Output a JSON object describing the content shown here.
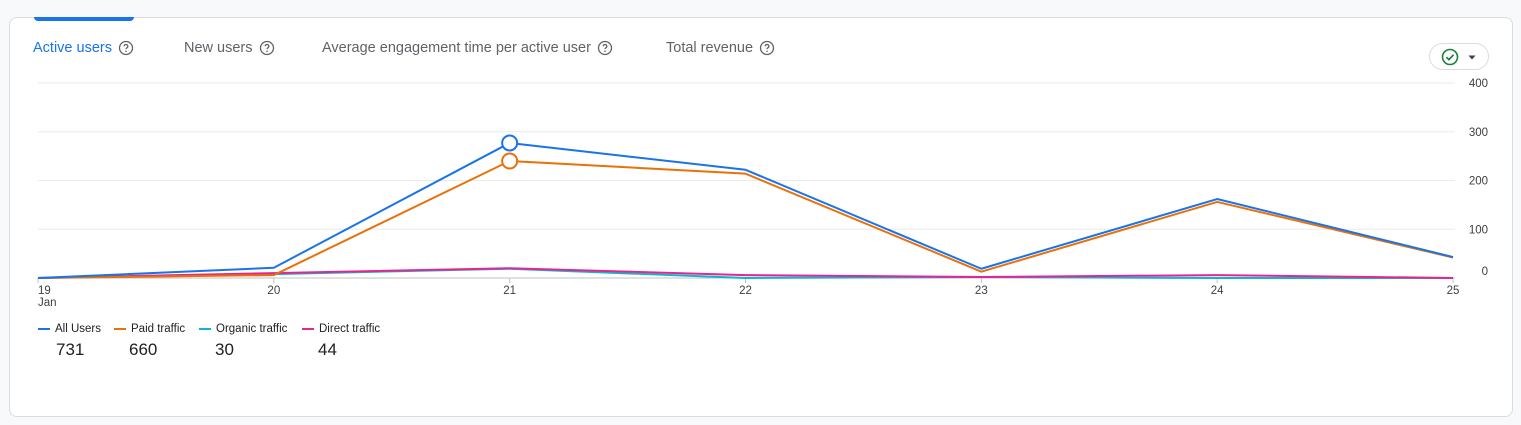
{
  "tabs": [
    {
      "label": "Active users",
      "active": true
    },
    {
      "label": "New users",
      "active": false
    },
    {
      "label": "Average engagement time per active user",
      "active": false
    },
    {
      "label": "Total revenue",
      "active": false
    }
  ],
  "icons": {
    "help": "help-circle-icon",
    "compare": "check-circle-icon",
    "dropdown": "caret-down-icon"
  },
  "colors": {
    "accent": "#1a73e8",
    "compare_check": "#188038"
  },
  "chart_data": {
    "type": "line",
    "categories": [
      "19",
      "20",
      "21",
      "22",
      "23",
      "24",
      "25"
    ],
    "x_sublabel": "Jan",
    "ylim": [
      0,
      400
    ],
    "y_ticks": [
      0,
      100,
      200,
      300,
      400
    ],
    "grid": true,
    "legend_position": "bottom-left",
    "highlight_index": 2,
    "series": [
      {
        "name": "All Users",
        "color": "#1a73e8",
        "total": "731",
        "values": [
          0,
          21,
          277,
          222,
          19,
          162,
          43
        ]
      },
      {
        "name": "Paid traffic",
        "color": "#e8710a",
        "total": "660",
        "values": [
          0,
          6,
          240,
          214,
          13,
          156,
          42
        ]
      },
      {
        "name": "Organic traffic",
        "color": "#12b5cb",
        "total": "30",
        "values": [
          0,
          8,
          19,
          0,
          2,
          0,
          0
        ]
      },
      {
        "name": "Direct traffic",
        "color": "#e52592",
        "total": "44",
        "values": [
          0,
          10,
          20,
          6,
          2,
          6,
          0
        ]
      }
    ]
  }
}
